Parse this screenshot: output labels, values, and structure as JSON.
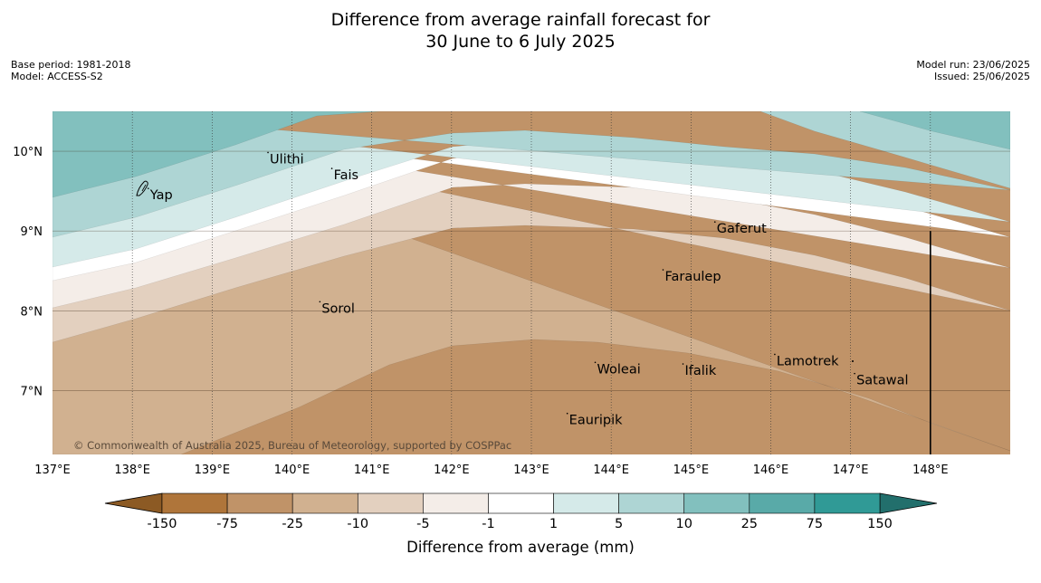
{
  "title": {
    "line1": "Difference from average rainfall forecast for",
    "line2": "30 June to 6 July 2025"
  },
  "meta_left": {
    "base_period": "Base period: 1981-2018",
    "model": "Model: ACCESS-S2"
  },
  "meta_right": {
    "model_run": "Model run: 23/06/2025",
    "issued": "Issued: 25/06/2025"
  },
  "map": {
    "lon_range": [
      137,
      149
    ],
    "lat_range": [
      6.2,
      10.5
    ],
    "lon_ticks": [
      137,
      138,
      139,
      140,
      141,
      142,
      143,
      144,
      145,
      146,
      147,
      148
    ],
    "lon_tick_labels": [
      "137°E",
      "138°E",
      "139°E",
      "140°E",
      "141°E",
      "142°E",
      "143°E",
      "144°E",
      "145°E",
      "146°E",
      "147°E",
      "148°E"
    ],
    "lat_ticks": [
      7,
      8,
      9,
      10
    ],
    "lat_tick_labels": [
      "7°N",
      "8°N",
      "9°N",
      "10°N"
    ],
    "copyright": "© Commonwealth of Australia 2025, Bureau of Meteorology, supported by COSPPac",
    "places": [
      {
        "name": "Yap",
        "lon": 138.2,
        "lat": 9.5
      },
      {
        "name": "Ulithi",
        "lon": 139.7,
        "lat": 9.95
      },
      {
        "name": "Fais",
        "lon": 140.5,
        "lat": 9.75
      },
      {
        "name": "Gaferut",
        "lon": 145.3,
        "lat": 9.08
      },
      {
        "name": "Faraulep",
        "lon": 144.65,
        "lat": 8.48
      },
      {
        "name": "Sorol",
        "lon": 140.35,
        "lat": 8.08
      },
      {
        "name": "Lamotrek",
        "lon": 146.05,
        "lat": 7.42
      },
      {
        "name": "Woleai",
        "lon": 143.8,
        "lat": 7.32
      },
      {
        "name": "Ifalik",
        "lon": 144.9,
        "lat": 7.3
      },
      {
        "name": "Satawal",
        "lon": 147.05,
        "lat": 7.18
      },
      {
        "name": "Eauripik",
        "lon": 143.45,
        "lat": 6.68
      }
    ],
    "eez_boundary_lon": 148
  },
  "colorbar": {
    "title": "Difference from average (mm)",
    "ticks": [
      "-150",
      "-75",
      "-25",
      "-10",
      "-5",
      "-1",
      "1",
      "5",
      "10",
      "25",
      "75",
      "150"
    ],
    "colors": {
      "under": "#8c5a24",
      "bins": [
        "#af753a",
        "#c09368",
        "#d1b190",
        "#e3d0bf",
        "#f4ede8",
        "#ffffff",
        "#d5eae9",
        "#aed5d4",
        "#82c0be",
        "#59aaa8",
        "#309a96"
      ],
      "over": "#226f6c"
    }
  },
  "contours": {
    "fill_colors": [
      "#c09368",
      "#d1b190",
      "#e3d0bf",
      "#f4ede8",
      "#ffffff",
      "#d5eae9",
      "#aed5d4",
      "#82c0be"
    ]
  }
}
